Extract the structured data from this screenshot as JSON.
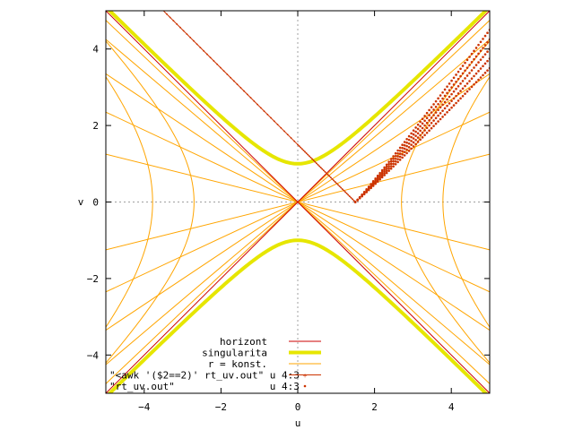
{
  "chart_data": {
    "type": "line",
    "title": "",
    "xlabel": "u",
    "ylabel": "v",
    "xlim": [
      -5,
      5
    ],
    "ylim": [
      -5,
      5
    ],
    "xticks": [
      -4,
      -2,
      0,
      2,
      4
    ],
    "yticks": [
      -4,
      -2,
      0,
      2,
      4
    ],
    "zero_axes": "dotted grey",
    "colors": {
      "horizont": "#cc0000",
      "singularita": "#e6e600",
      "r_konst": "#ffa500",
      "awk_series": "#cc3300",
      "rt_series": "#cc3300"
    },
    "legend_position": "bottom-center",
    "legend": [
      {
        "label": "horizont",
        "style": "line-red-thin"
      },
      {
        "label": "singularita",
        "style": "line-yellow-thick"
      },
      {
        "label": "r = konst.",
        "style": "line-orange-thin"
      },
      {
        "label": "\"<awk '($2==2)' rt_uv.out\" u 4:3",
        "style": "linepoints-red"
      },
      {
        "label": "\"rt_uv.out\"                u 4:3",
        "style": "points-red"
      }
    ],
    "series": [
      {
        "name": "horizont",
        "kind": "lines",
        "segments": [
          [
            [
              -5,
              -5
            ],
            [
              5,
              5
            ]
          ],
          [
            [
              -5,
              5
            ],
            [
              5,
              -5
            ]
          ]
        ]
      },
      {
        "name": "singularita",
        "kind": "curve",
        "equation": "v^2 - u^2 = 1",
        "branches": [
          "upper",
          "lower"
        ]
      },
      {
        "name": "r = konst.",
        "kind": "family",
        "rays_through_origin_slopes": [
          0.25,
          0.47,
          0.67,
          0.85,
          0.95,
          -0.25,
          -0.47,
          -0.67,
          -0.85,
          -0.95
        ],
        "hyperbolas_u2_minus_v2": [
          7.3,
          14.3
        ]
      },
      {
        "name": "\"<awk '($2==2)' rt_uv.out\" u 4:3",
        "kind": "linepoints",
        "points": [
          [
            1.5,
            0.0
          ],
          [
            0.0,
            1.5
          ],
          [
            -3.5,
            5.0
          ]
        ]
      },
      {
        "name": "\"rt_uv.out\"                u 4:3",
        "kind": "points",
        "fan_start": [
          1.5,
          0.0
        ],
        "fan_end_v": [
          3.5,
          3.75,
          4.0,
          4.25,
          4.5
        ],
        "fan_end_u": 5.0
      }
    ]
  }
}
